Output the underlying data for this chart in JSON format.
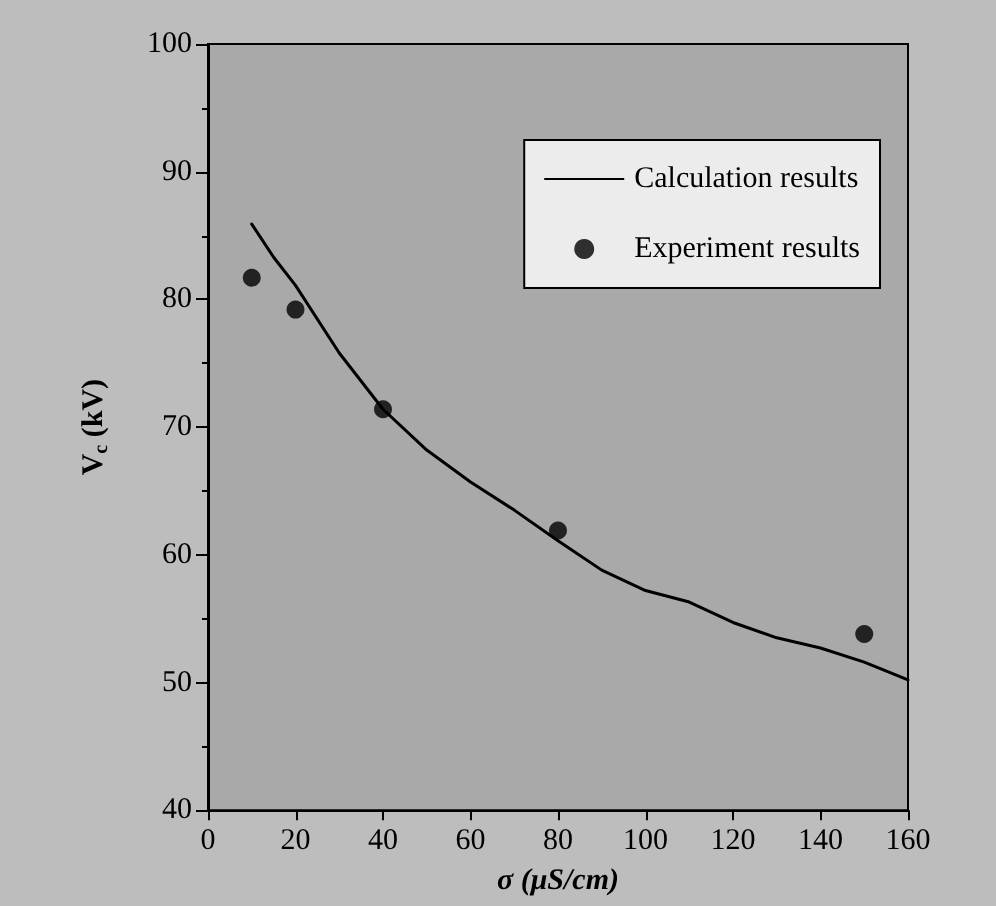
{
  "chart_data": {
    "type": "line",
    "xlabel": "σ (μS/cm)",
    "ylabel": "V$_{c}$ (kV)",
    "xlim": [
      0,
      160
    ],
    "xticks": [
      0,
      20,
      40,
      60,
      80,
      100,
      120,
      140,
      160
    ],
    "ylim": [
      40,
      100
    ],
    "yticks": [
      40,
      50,
      60,
      70,
      80,
      90,
      100
    ],
    "grid": false,
    "legend": "top right",
    "series": [
      {
        "name": "Calculation results",
        "color": "#000000",
        "marker": "none",
        "line_style": "solid",
        "x": [
          10,
          15,
          20,
          30,
          40,
          50,
          60,
          70,
          80,
          90,
          100,
          110,
          120,
          130,
          140,
          150,
          160
        ],
        "values": [
          85.9,
          83.3,
          81.1,
          75.8,
          71.4,
          68.2,
          65.7,
          63.5,
          61.1,
          58.8,
          57.2,
          56.3,
          54.7,
          53.5,
          52.7,
          51.6,
          50.2
        ]
      },
      {
        "name": "Experiment results",
        "type": "scatter",
        "color": "#000000",
        "marker": "circle",
        "x": [
          10,
          20,
          40,
          80,
          150
        ],
        "values": [
          81.7,
          79.2,
          71.4,
          61.9,
          53.8
        ]
      }
    ]
  }
}
